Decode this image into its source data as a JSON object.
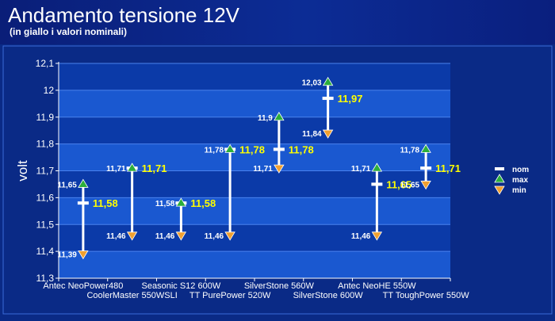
{
  "header": {
    "title": "Andamento tensione 12V",
    "subtitle": "(in giallo i valori nominali)"
  },
  "colors": {
    "background": "#0a2a86",
    "band_dark": "#0b3aa8",
    "band_light": "#1a58d0",
    "grid": "#4a82ee",
    "bar": "#ffffff",
    "nominal_text": "#ffff00",
    "value_text": "#ffffff",
    "max_marker": "#2cae3c",
    "min_marker": "#f0a030"
  },
  "chart_data": {
    "type": "range",
    "title": "Andamento tensione 12V",
    "subtitle": "(in giallo i valori nominali)",
    "ylabel": "volt",
    "ylim": [
      11.3,
      12.1
    ],
    "yticks": [
      "11,3",
      "11,4",
      "11,5",
      "11,6",
      "11,7",
      "11,8",
      "11,9",
      "12",
      "12,1"
    ],
    "grid": true,
    "legend_position": "right",
    "categories": [
      "Antec NeoPower480",
      "CoolerMaster 550WSLI",
      "Seasonic S12 600W",
      "TT PurePower 520W",
      "SilverStone 560W",
      "SilverStone 600W",
      "Antec NeoHE 550W",
      "TT ToughPower 550W"
    ],
    "series": [
      {
        "name": "nom",
        "values": [
          11.58,
          11.71,
          11.58,
          11.78,
          11.78,
          11.97,
          11.65,
          11.71
        ],
        "labels": [
          "11,58",
          "11,71",
          "11,58",
          "11,78",
          "11,78",
          "11,97",
          "11,65",
          "11,71"
        ]
      },
      {
        "name": "max",
        "values": [
          11.65,
          11.71,
          11.58,
          11.78,
          11.9,
          12.03,
          11.71,
          11.78
        ],
        "labels": [
          "11,65",
          "11,71",
          "11,58",
          "11,78",
          "11,9",
          "12,03",
          "11,71",
          "11,78"
        ]
      },
      {
        "name": "min",
        "values": [
          11.39,
          11.46,
          11.46,
          11.46,
          11.71,
          11.84,
          11.46,
          11.65
        ],
        "labels": [
          "11,39",
          "11,46",
          "11,46",
          "11,46",
          "11,71",
          "11,84",
          "11,46",
          "11,65"
        ]
      }
    ]
  }
}
